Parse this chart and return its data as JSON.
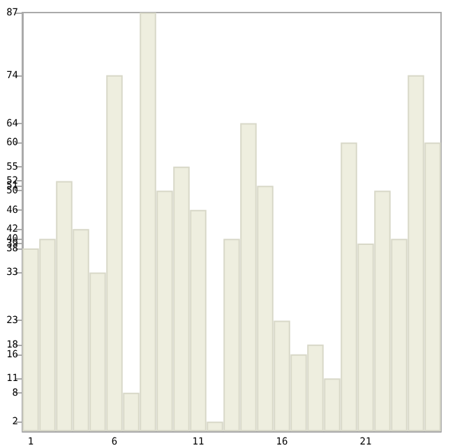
{
  "chart_data": {
    "type": "bar",
    "categories": [
      "1",
      null,
      null,
      null,
      null,
      "6",
      null,
      null,
      null,
      null,
      "11",
      null,
      null,
      null,
      null,
      "16",
      null,
      null,
      null,
      null,
      "21",
      null,
      null,
      null,
      null
    ],
    "values": [
      38,
      40,
      52,
      42,
      33,
      74,
      8,
      87,
      50,
      55,
      46,
      2,
      40,
      64,
      51,
      23,
      16,
      18,
      11,
      60,
      39,
      50,
      40,
      74,
      60
    ],
    "color": "#eeeedf",
    "ylim": [
      0,
      87
    ],
    "yticks": [
      2,
      8,
      11,
      16,
      18,
      23,
      33,
      38,
      39,
      40,
      42,
      46,
      50,
      51,
      52,
      55,
      60,
      64,
      74,
      87
    ],
    "grid": false
  }
}
